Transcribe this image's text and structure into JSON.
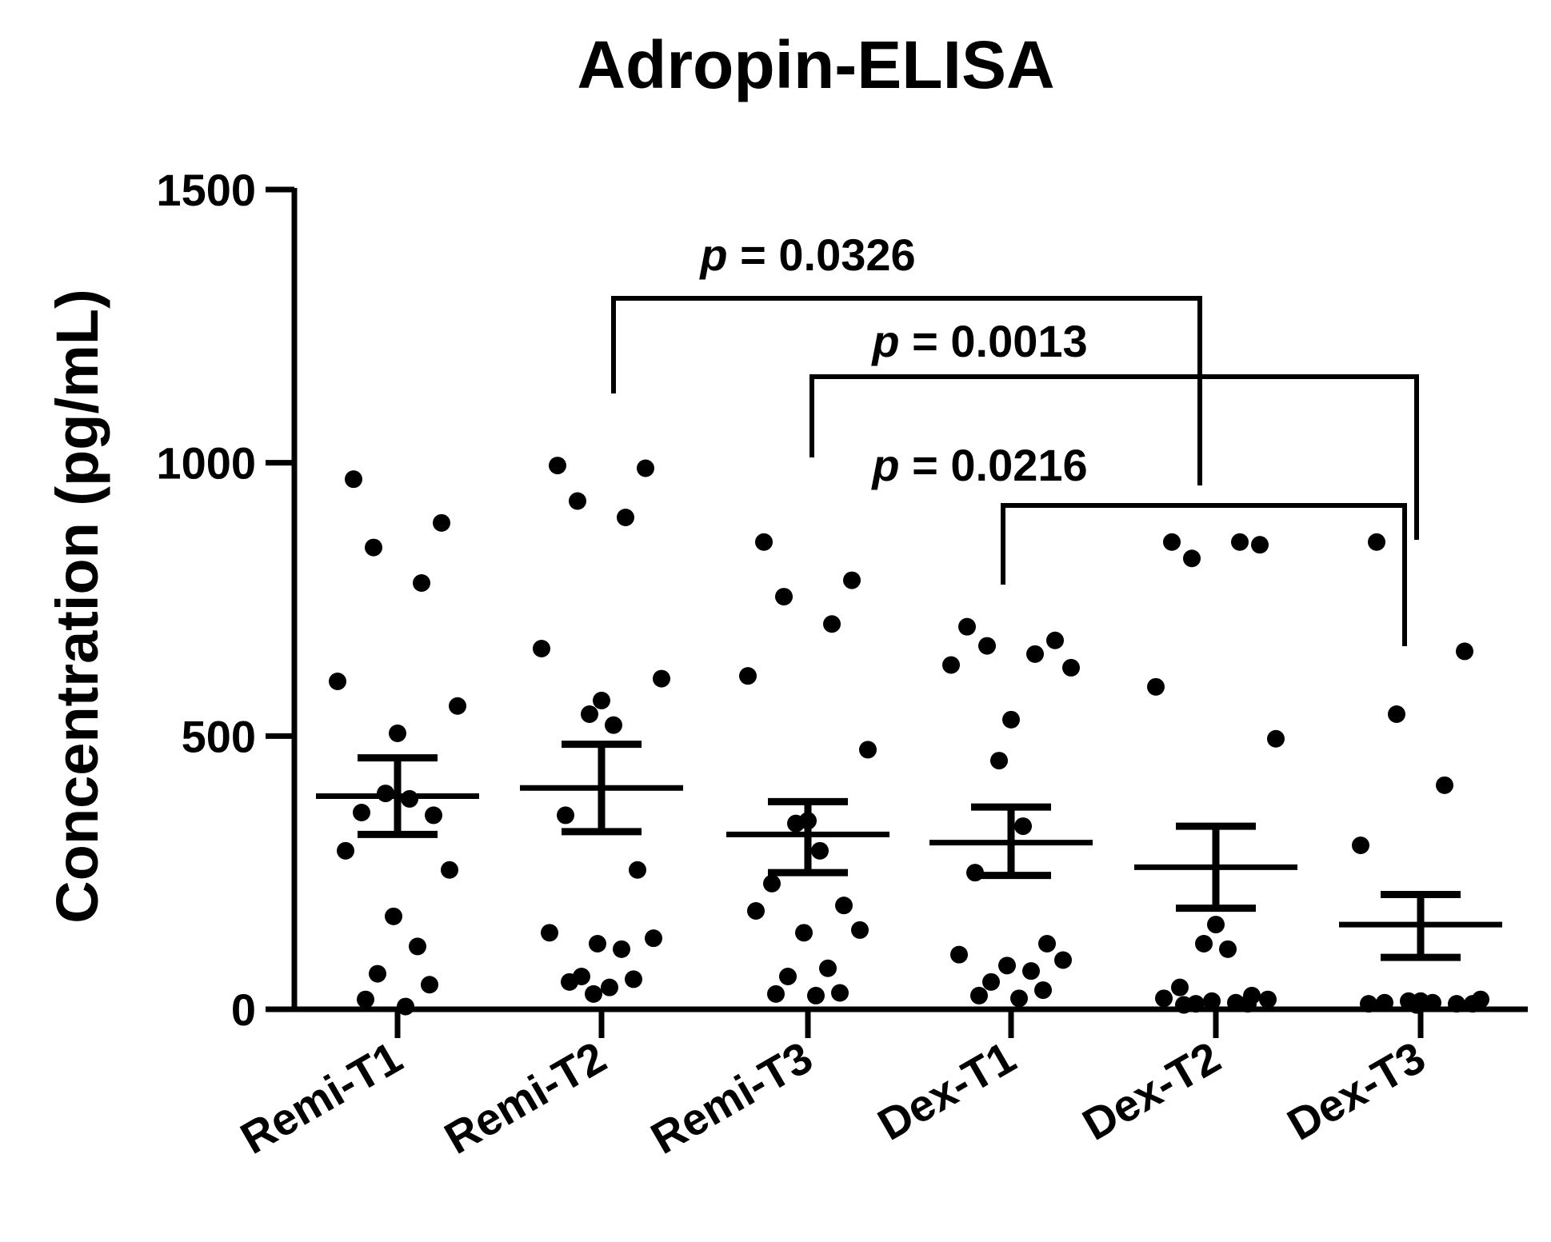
{
  "chart_data": {
    "type": "scatter",
    "title": "Adropin-ELISA",
    "xlabel": "",
    "ylabel": "Concentration (pg/mL)",
    "ylim": [
      0,
      1500
    ],
    "yticks": [
      0,
      500,
      1000,
      1500
    ],
    "categories": [
      "Remi-T1",
      "Remi-T2",
      "Remi-T3",
      "Dex-T1",
      "Dex-T2",
      "Dex-T3"
    ],
    "groups": [
      {
        "name": "Remi-T1",
        "mean": 390,
        "sem_upper": 460,
        "sem_lower": 320,
        "points": [
          970,
          890,
          845,
          780,
          600,
          555,
          505,
          395,
          385,
          360,
          355,
          290,
          255,
          170,
          115,
          65,
          45,
          18,
          5
        ]
      },
      {
        "name": "Remi-T2",
        "mean": 405,
        "sem_upper": 485,
        "sem_lower": 325,
        "points": [
          995,
          990,
          930,
          900,
          660,
          605,
          565,
          540,
          520,
          355,
          255,
          140,
          130,
          120,
          110,
          60,
          55,
          50,
          40,
          28
        ]
      },
      {
        "name": "Remi-T3",
        "mean": 320,
        "sem_upper": 380,
        "sem_lower": 250,
        "points": [
          855,
          785,
          755,
          705,
          610,
          475,
          345,
          340,
          290,
          230,
          190,
          180,
          145,
          140,
          75,
          60,
          30,
          28,
          25
        ]
      },
      {
        "name": "Dex-T1",
        "mean": 305,
        "sem_upper": 370,
        "sem_lower": 245,
        "points": [
          700,
          675,
          665,
          650,
          630,
          625,
          530,
          455,
          335,
          250,
          120,
          100,
          90,
          80,
          70,
          50,
          35,
          25,
          20
        ]
      },
      {
        "name": "Dex-T2",
        "mean": 260,
        "sem_upper": 335,
        "sem_lower": 185,
        "points": [
          855,
          850,
          825,
          855,
          590,
          495,
          155,
          120,
          110,
          40,
          25,
          20,
          18,
          15,
          12,
          10,
          10,
          8
        ]
      },
      {
        "name": "Dex-T3",
        "mean": 155,
        "sem_upper": 210,
        "sem_lower": 95,
        "points": [
          855,
          655,
          540,
          410,
          300,
          18,
          15,
          15,
          12,
          12,
          10,
          10,
          10,
          8
        ]
      }
    ],
    "comparisons": [
      {
        "p_label": "p",
        "value_text": "= 0.0326",
        "from": "Remi-T2",
        "to": "Dex-T2"
      },
      {
        "p_label": "p",
        "value_text": "= 0.0013",
        "from": "Remi-T3",
        "to": "Dex-T3"
      },
      {
        "p_label": "p",
        "value_text": "= 0.0216",
        "from": "Dex-T1",
        "to": "Dex-T3"
      }
    ]
  }
}
